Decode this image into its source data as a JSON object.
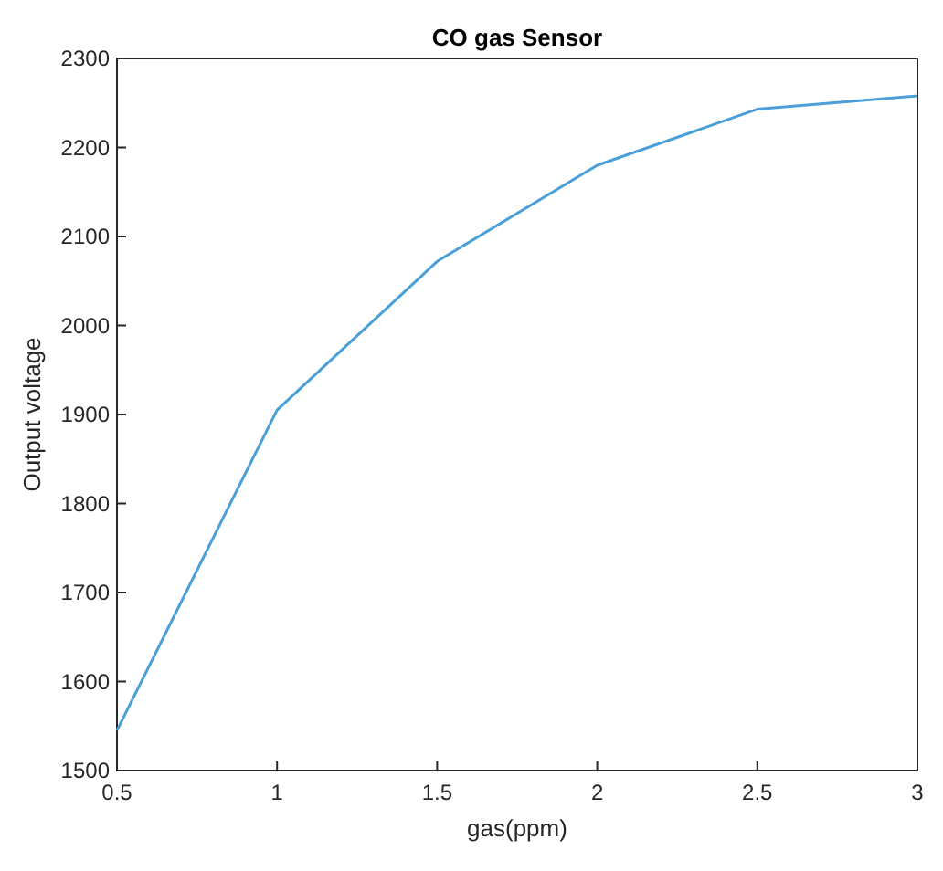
{
  "chart_data": {
    "type": "line",
    "title": "CO gas Sensor",
    "xlabel": "gas(ppm)",
    "ylabel": "Output voltage",
    "x": [
      0.5,
      1,
      1.5,
      2,
      2.5,
      3
    ],
    "series": [
      {
        "color": "#4a9fd8",
        "values": [
          1545,
          1905,
          2072,
          2180,
          2243,
          2258
        ]
      }
    ],
    "xlim": [
      0.5,
      3
    ],
    "xticks": [
      0.5,
      1,
      1.5,
      2,
      2.5,
      3
    ],
    "ylim": [
      1500,
      2300
    ],
    "yticks": [
      1500,
      1600,
      1700,
      1800,
      1900,
      2000,
      2100,
      2200,
      2300
    ],
    "grid": false,
    "marker": "none",
    "line_style": "solid"
  }
}
